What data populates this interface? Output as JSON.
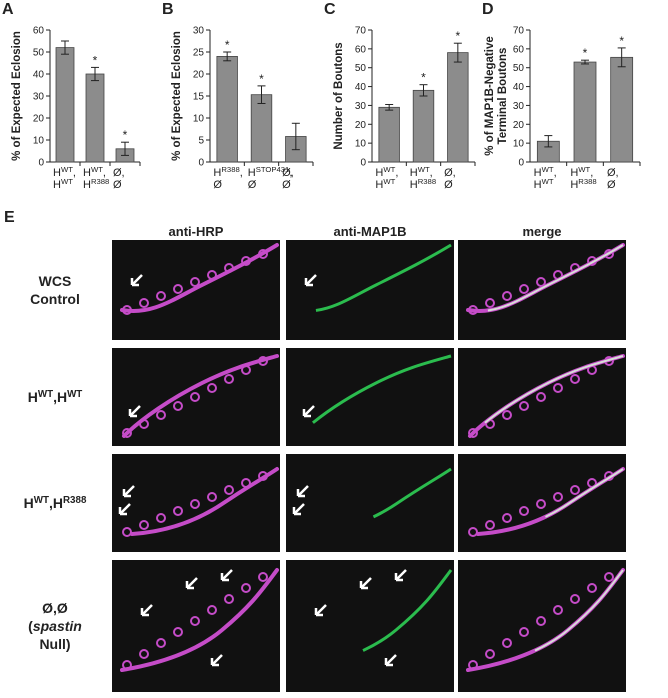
{
  "chart_data": [
    {
      "type": "bar",
      "panel": "A",
      "ylabel": "% of Expected Eclosion",
      "categories": [
        [
          [
            {
              "text": "H"
            },
            {
              "text": "WT",
              "sup": true
            },
            {
              "text": ","
            }
          ],
          [
            {
              "text": "H"
            },
            {
              "text": "WT",
              "sup": true
            }
          ]
        ],
        [
          [
            {
              "text": "H"
            },
            {
              "text": "WT",
              "sup": true
            },
            {
              "text": ","
            }
          ],
          [
            {
              "text": "H"
            },
            {
              "text": "R388",
              "sup": true
            }
          ]
        ],
        [
          [
            {
              "text": "Ø,"
            }
          ],
          [
            {
              "text": "Ø"
            }
          ]
        ]
      ],
      "values": [
        52,
        40,
        6
      ],
      "errors": [
        3,
        3,
        3
      ],
      "significance": [
        null,
        "*",
        "*"
      ],
      "color": "#8c8c8c",
      "ylim": [
        0,
        60
      ],
      "yticks": [
        0,
        10,
        20,
        30,
        40,
        50,
        60
      ]
    },
    {
      "type": "bar",
      "panel": "B",
      "ylabel": "% of Expected Eclosion",
      "categories": [
        [
          [
            {
              "text": "H"
            },
            {
              "text": "R388",
              "sup": true
            },
            {
              "text": ","
            }
          ],
          [
            {
              "text": "Ø"
            }
          ]
        ],
        [
          [
            {
              "text": "H"
            },
            {
              "text": "STOP431",
              "sup": true
            },
            {
              "text": ","
            }
          ],
          [
            {
              "text": "Ø"
            }
          ]
        ],
        [
          [
            {
              "text": "Ø,"
            }
          ],
          [
            {
              "text": "Ø"
            }
          ]
        ]
      ],
      "values": [
        24,
        15.3,
        5.8
      ],
      "errors": [
        1,
        2,
        3
      ],
      "significance": [
        "*",
        "*",
        null
      ],
      "color": "#8c8c8c",
      "ylim": [
        0,
        30
      ],
      "yticks": [
        0,
        5,
        10,
        15,
        20,
        25,
        30
      ]
    },
    {
      "type": "bar",
      "panel": "C",
      "ylabel": "Number of Boutons",
      "categories": [
        [
          [
            {
              "text": "H"
            },
            {
              "text": "WT",
              "sup": true
            },
            {
              "text": ","
            }
          ],
          [
            {
              "text": "H"
            },
            {
              "text": "WT",
              "sup": true
            }
          ]
        ],
        [
          [
            {
              "text": "H"
            },
            {
              "text": "WT",
              "sup": true
            },
            {
              "text": ","
            }
          ],
          [
            {
              "text": "H"
            },
            {
              "text": "R388",
              "sup": true
            }
          ]
        ],
        [
          [
            {
              "text": "Ø,"
            }
          ],
          [
            {
              "text": "Ø"
            }
          ]
        ]
      ],
      "values": [
        29,
        38,
        58
      ],
      "errors": [
        1.5,
        3,
        5
      ],
      "significance": [
        null,
        "*",
        "*"
      ],
      "color": "#8c8c8c",
      "ylim": [
        0,
        70
      ],
      "yticks": [
        0,
        10,
        20,
        30,
        40,
        50,
        60,
        70
      ]
    },
    {
      "type": "bar",
      "panel": "D",
      "ylabel": [
        "% of MAP1B-Negative",
        "Terminal Boutons"
      ],
      "categories": [
        [
          [
            {
              "text": "H"
            },
            {
              "text": "WT",
              "sup": true
            },
            {
              "text": ","
            }
          ],
          [
            {
              "text": "H"
            },
            {
              "text": "WT",
              "sup": true
            }
          ]
        ],
        [
          [
            {
              "text": "H"
            },
            {
              "text": "WT",
              "sup": true
            },
            {
              "text": ","
            }
          ],
          [
            {
              "text": "H"
            },
            {
              "text": "R388",
              "sup": true
            }
          ]
        ],
        [
          [
            {
              "text": "Ø,"
            }
          ],
          [
            {
              "text": "Ø"
            }
          ]
        ]
      ],
      "values": [
        11,
        53,
        55.5
      ],
      "errors": [
        3,
        1,
        5
      ],
      "significance": [
        null,
        "*",
        "*"
      ],
      "color": "#8c8c8c",
      "ylim": [
        0,
        70
      ],
      "yticks": [
        0,
        10,
        20,
        30,
        40,
        50,
        60,
        70
      ]
    }
  ],
  "panel_e": {
    "label": "E",
    "columns": [
      "anti-HRP",
      "anti-MAP1B",
      "merge"
    ],
    "rows": [
      [
        [
          {
            "text": "WCS"
          }
        ],
        [
          {
            "text": "Control"
          }
        ]
      ],
      [
        [
          {
            "text": "H"
          },
          {
            "text": "WT",
            "sup": true
          },
          {
            "text": ",H"
          },
          {
            "text": "WT",
            "sup": true
          }
        ]
      ],
      [
        [
          {
            "text": "H"
          },
          {
            "text": "WT",
            "sup": true
          },
          {
            "text": ",H"
          },
          {
            "text": "R388",
            "sup": true
          }
        ]
      ],
      [
        [
          {
            "text": "Ø,Ø"
          }
        ],
        [
          {
            "text": "("
          },
          {
            "text": "spastin",
            "italic": true
          },
          {
            "text": ""
          }
        ],
        [
          {
            "text": "Null)"
          }
        ]
      ]
    ]
  }
}
